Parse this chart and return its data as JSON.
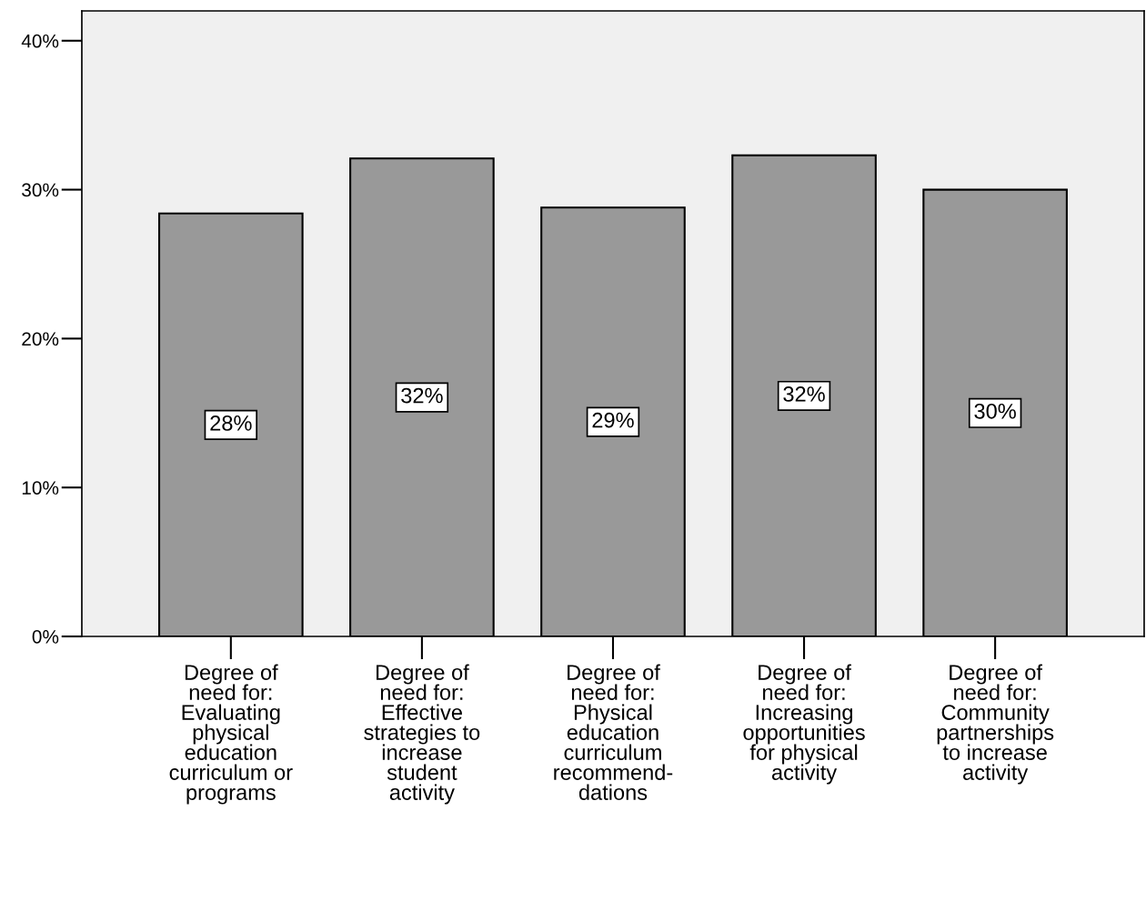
{
  "chart_data": {
    "type": "bar",
    "categories": [
      "Degree of\nneed for:\nEvaluating\nphysical\neducation\ncurriculum or\nprograms",
      "Degree of\nneed for:\nEffective\nstrategies to\nincrease\nstudent\nactivity",
      "Degree of\nneed for:\nPhysical\neducation\ncurriculum\nrecommend-\ndations",
      "Degree of\nneed for:\nIncreasing\nopportunities\nfor physical\nactivity",
      "Degree of\nneed for:\nCommunity\npartnerships\nto increase\nactivity"
    ],
    "values": [
      28.4,
      32.1,
      28.8,
      32.3,
      30.0
    ],
    "value_labels": [
      "28%",
      "32%",
      "29%",
      "32%",
      "30%"
    ],
    "color": "#999999",
    "ylim": [
      0,
      42
    ],
    "yticks": [
      {
        "value": 0,
        "label": "0%"
      },
      {
        "value": 10,
        "label": "10%"
      },
      {
        "value": 20,
        "label": "20%"
      },
      {
        "value": 30,
        "label": "30%"
      },
      {
        "value": 40,
        "label": "40%"
      }
    ],
    "grid": false
  }
}
